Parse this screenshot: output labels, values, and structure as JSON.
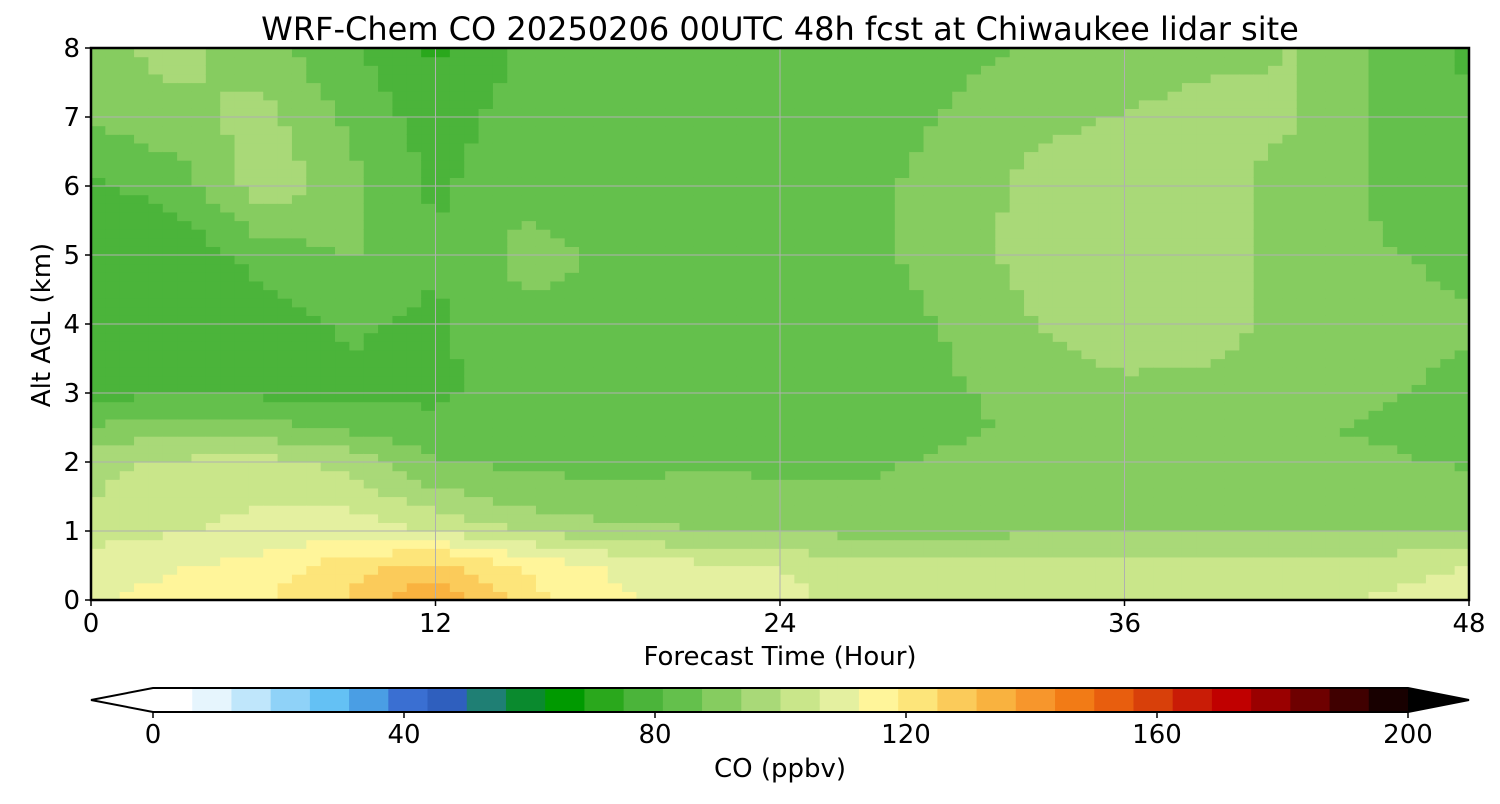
{
  "chart_data": {
    "type": "heatmap",
    "title": "WRF-Chem CO  20250206 00UTC 48h fcst at Chiwaukee lidar site",
    "xlabel": "Forecast Time (Hour)",
    "ylabel": "Alt AGL (km)",
    "xlim": [
      0,
      48
    ],
    "ylim": [
      0,
      8
    ],
    "xticks": [
      0,
      12,
      24,
      36,
      48
    ],
    "xtick_labels": [
      "0",
      "12",
      "24",
      "36",
      "48"
    ],
    "yticks": [
      0,
      1,
      2,
      3,
      4,
      5,
      6,
      7,
      8
    ],
    "ytick_labels": [
      "0",
      "1",
      "2",
      "3",
      "4",
      "5",
      "6",
      "7",
      "8"
    ],
    "grid": true,
    "colorbar": {
      "label": "CO  (ppbv)",
      "min": 0,
      "max": 200,
      "ticks": [
        0,
        40,
        80,
        120,
        160,
        200
      ],
      "tick_labels": [
        "0",
        "40",
        "80",
        "120",
        "160",
        "200"
      ],
      "extend": "both",
      "colors": [
        "#ffffff",
        "#e6f5fd",
        "#bfe6fb",
        "#8fd2f8",
        "#64c1f4",
        "#4a9ee4",
        "#3a6fd2",
        "#2f5fbe",
        "#1f7f74",
        "#0a8a2e",
        "#009a00",
        "#2aa81c",
        "#4bb43a",
        "#64c04c",
        "#86cc60",
        "#a9d978",
        "#c9e68a",
        "#e4f0a0",
        "#fff59a",
        "#fde57a",
        "#fbcb5a",
        "#f9b23f",
        "#f7962c",
        "#f27b16",
        "#e85e0e",
        "#d8400a",
        "#c91c06",
        "#c00000",
        "#9a0000",
        "#6e0000",
        "#400000",
        "#180000"
      ],
      "under_color": "#ffffff",
      "over_color": "#000000"
    },
    "times_hour": [
      0,
      3,
      6,
      9,
      12,
      15,
      18,
      21,
      24,
      27,
      30,
      33,
      36,
      39,
      42,
      45,
      48
    ],
    "altitudes_km": [
      0,
      0.5,
      1,
      1.5,
      2,
      2.5,
      3,
      4,
      5,
      6,
      7,
      8
    ],
    "values_ppbv": [
      [
        112,
        115,
        118,
        126,
        138,
        122,
        114,
        110,
        108,
        104,
        104,
        103,
        102,
        103,
        104,
        107,
        110
      ],
      [
        109,
        112,
        115,
        122,
        128,
        118,
        112,
        108,
        106,
        102,
        102,
        101,
        101,
        101,
        102,
        104,
        106
      ],
      [
        104,
        106,
        108,
        110,
        106,
        100,
        96,
        94,
        93,
        92,
        92,
        93,
        93,
        93,
        93,
        93,
        93
      ],
      [
        100,
        103,
        106,
        104,
        96,
        91,
        89,
        89,
        88,
        88,
        89,
        90,
        90,
        90,
        90,
        90,
        89
      ],
      [
        98,
        101,
        102,
        98,
        88,
        86,
        86,
        87,
        87,
        87,
        88,
        89,
        89,
        89,
        88,
        88,
        87
      ],
      [
        88,
        92,
        90,
        86,
        83,
        84,
        85,
        86,
        86,
        86,
        87,
        88,
        89,
        89,
        88,
        87,
        86
      ],
      [
        80,
        80,
        80,
        80,
        80,
        84,
        86,
        86,
        84,
        85,
        87,
        89,
        92,
        92,
        90,
        88,
        86
      ],
      [
        76,
        76,
        78,
        82,
        80,
        86,
        87,
        86,
        84,
        85,
        88,
        94,
        98,
        96,
        92,
        90,
        88
      ],
      [
        76,
        76,
        84,
        88,
        82,
        89,
        87,
        86,
        84,
        86,
        90,
        97,
        100,
        96,
        92,
        88,
        86
      ],
      [
        80,
        84,
        98,
        90,
        80,
        86,
        86,
        86,
        85,
        86,
        90,
        96,
        98,
        95,
        92,
        86,
        84
      ],
      [
        88,
        92,
        96,
        86,
        78,
        84,
        85,
        85,
        85,
        85,
        88,
        92,
        94,
        96,
        94,
        86,
        82
      ],
      [
        92,
        96,
        90,
        82,
        74,
        82,
        83,
        83,
        83,
        84,
        86,
        88,
        90,
        92,
        94,
        86,
        80
      ]
    ]
  }
}
